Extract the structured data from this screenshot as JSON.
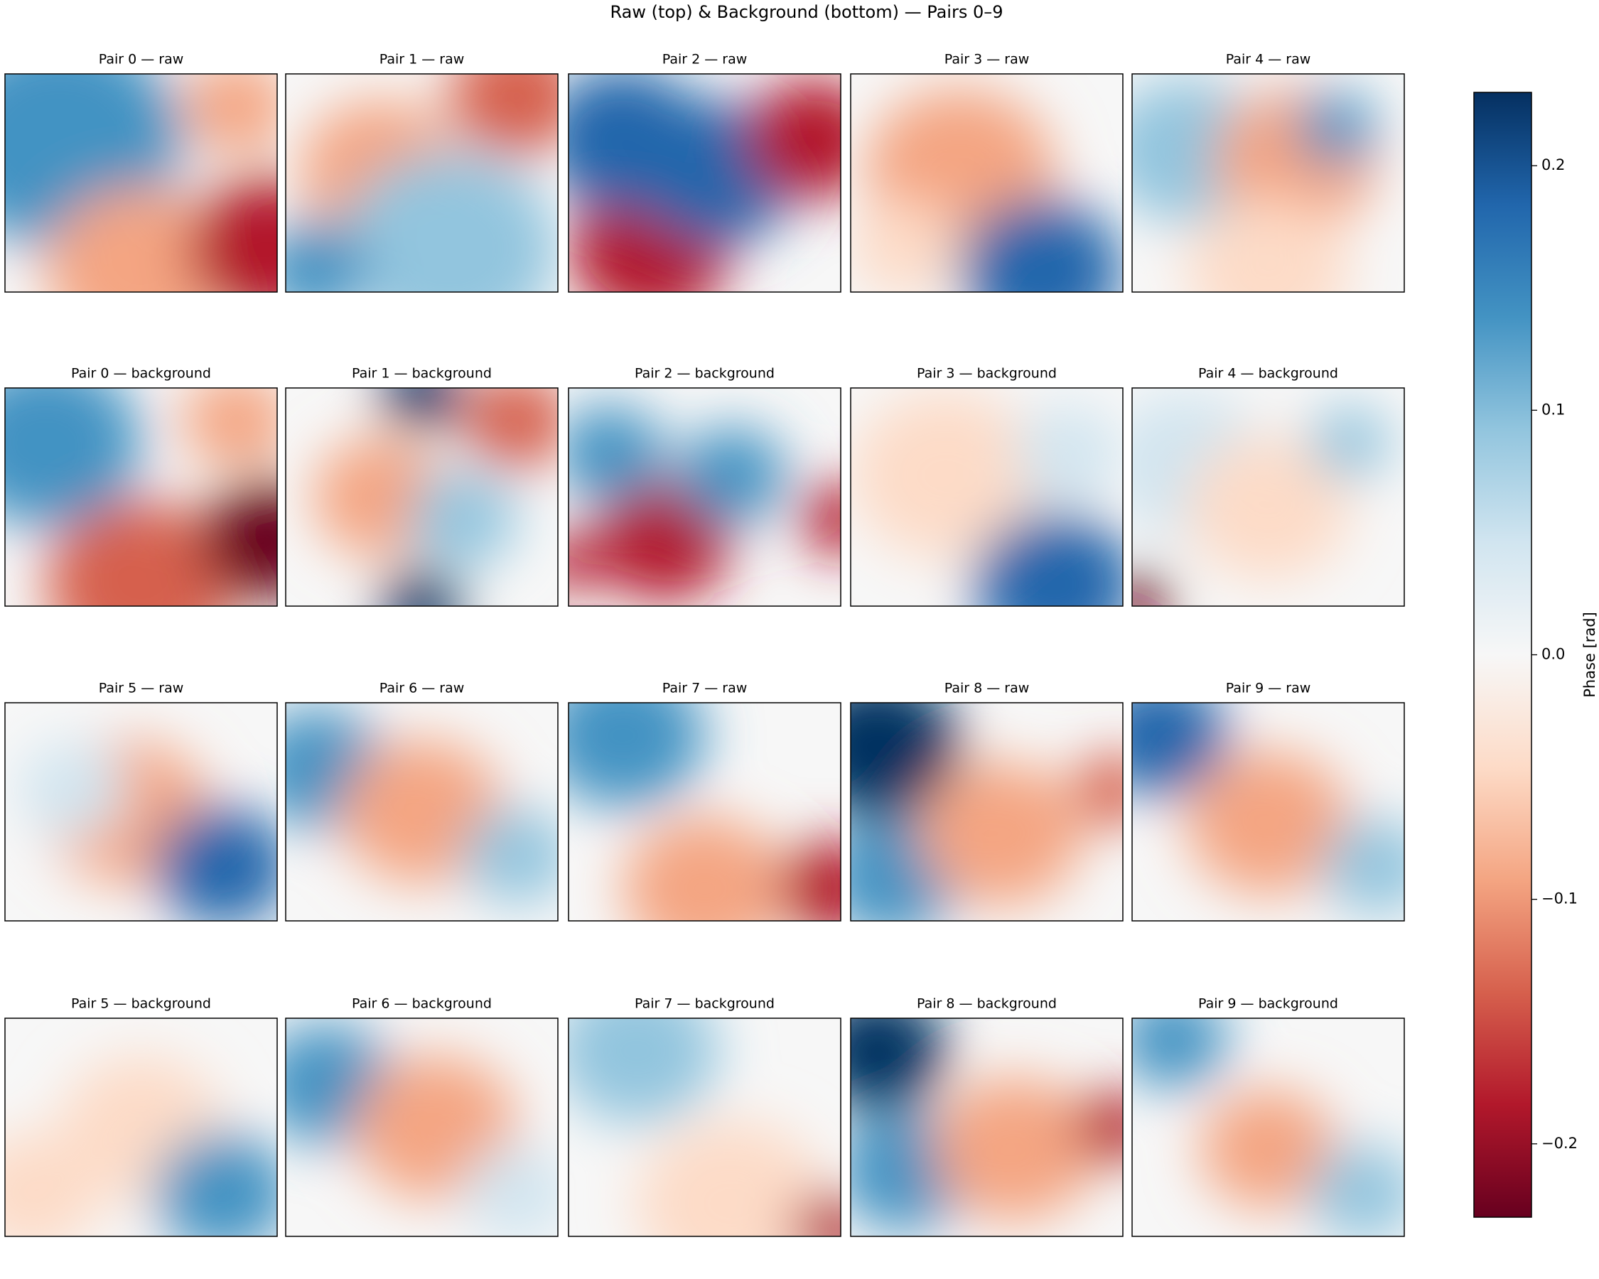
{
  "chart_data": {
    "type": "heatmap",
    "title": "Raw (top) & Background (bottom) — Pairs 0–9",
    "panels": [
      {
        "title": "Pair 0 — raw"
      },
      {
        "title": "Pair 1 — raw"
      },
      {
        "title": "Pair 2 — raw"
      },
      {
        "title": "Pair 3 — raw"
      },
      {
        "title": "Pair 4 — raw"
      },
      {
        "title": "Pair 0 — background"
      },
      {
        "title": "Pair 1 — background"
      },
      {
        "title": "Pair 2 — background"
      },
      {
        "title": "Pair 3 — background"
      },
      {
        "title": "Pair 4 — background"
      },
      {
        "title": "Pair 5 — raw"
      },
      {
        "title": "Pair 6 — raw"
      },
      {
        "title": "Pair 7 — raw"
      },
      {
        "title": "Pair 8 — raw"
      },
      {
        "title": "Pair 9 — raw"
      },
      {
        "title": "Pair 5 — background"
      },
      {
        "title": "Pair 6 — background"
      },
      {
        "title": "Pair 7 — background"
      },
      {
        "title": "Pair 8 — background"
      },
      {
        "title": "Pair 9 — background"
      }
    ],
    "colorbar": {
      "label": "Phase [rad]",
      "ylim": [
        -0.23,
        0.23
      ],
      "yticks": [
        {
          "value": -0.2,
          "label": "−0.2"
        },
        {
          "value": -0.1,
          "label": "−0.1"
        },
        {
          "value": 0,
          "label": "0.0"
        },
        0.1,
        0.2
      ],
      "colormap": [
        "#67001f",
        "#b2182b",
        "#d6604d",
        "#f4a582",
        "#fddbc7",
        "#f7f7f7",
        "#d1e5f0",
        "#92c5de",
        "#4393c3",
        "#2166ac",
        "#053061"
      ]
    }
  }
}
